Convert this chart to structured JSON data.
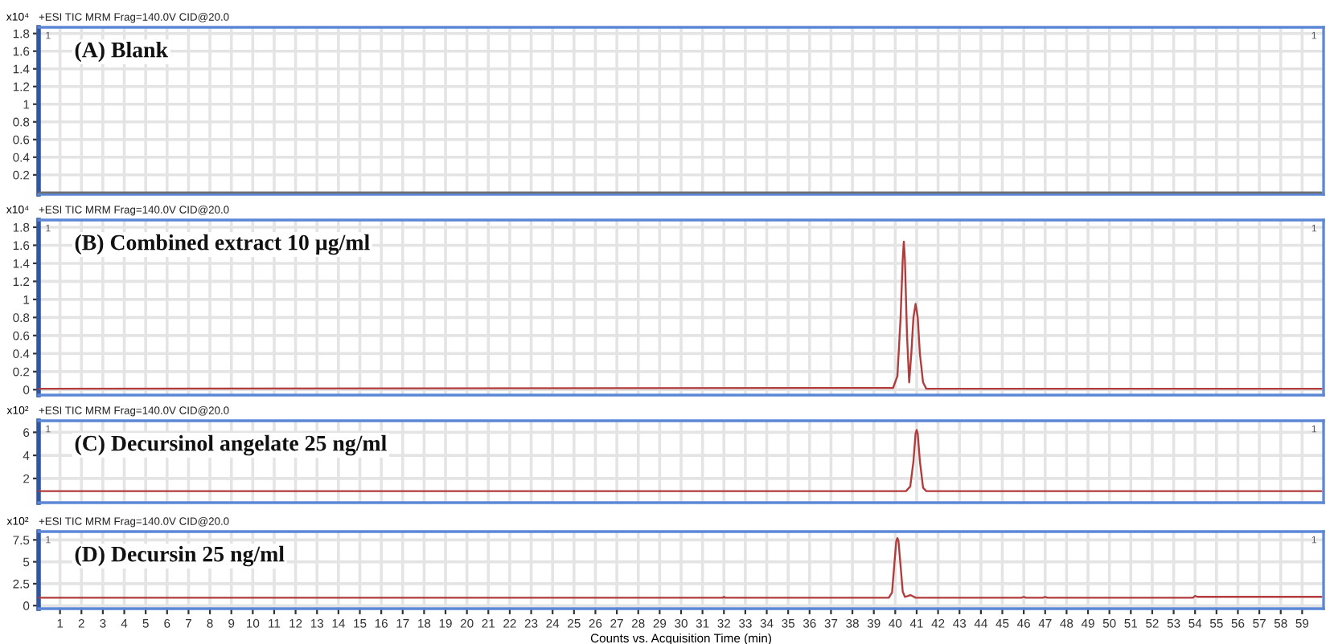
{
  "chart_data": [
    {
      "type": "line",
      "title": "+ESI TIC MRM Frag=140.0V CID@20.0",
      "subtitle": "(A) Blank",
      "ylabel": "x10⁴",
      "annotations": [
        "1",
        "1"
      ],
      "xlim": [
        0,
        60
      ],
      "xticks": [
        1,
        2,
        3,
        4,
        5,
        6,
        7,
        8,
        9,
        10,
        11,
        12,
        13,
        14,
        15,
        16,
        17,
        18,
        19,
        20,
        21,
        22,
        23,
        24,
        25,
        26,
        27,
        28,
        29,
        30,
        31,
        32,
        33,
        34,
        35,
        36,
        37,
        38,
        39,
        40,
        41,
        42,
        43,
        44,
        45,
        46,
        47,
        48,
        49,
        50,
        51,
        52,
        53,
        54,
        55,
        56,
        57,
        58,
        59
      ],
      "ylim": [
        -0.02,
        1.87
      ],
      "yticks": [
        0.2,
        0.4,
        0.6,
        0.8,
        1,
        1.2,
        1.4,
        1.6,
        1.8
      ],
      "grid": true,
      "tick_labels": "y",
      "series": [
        {
          "color": "#6e6e6e",
          "x": [
            0,
            59.9
          ],
          "values": [
            0,
            0
          ]
        }
      ]
    },
    {
      "type": "line",
      "title": "+ESI TIC MRM Frag=140.0V CID@20.0",
      "subtitle": "(B) Combined extract 10 µg/ml",
      "ylabel": "x10⁴",
      "annotations": [
        "1",
        "1"
      ],
      "xlim": [
        0,
        60
      ],
      "xticks": [
        1,
        2,
        3,
        4,
        5,
        6,
        7,
        8,
        9,
        10,
        11,
        12,
        13,
        14,
        15,
        16,
        17,
        18,
        19,
        20,
        21,
        22,
        23,
        24,
        25,
        26,
        27,
        28,
        29,
        30,
        31,
        32,
        33,
        34,
        35,
        36,
        37,
        38,
        39,
        40,
        41,
        42,
        43,
        44,
        45,
        46,
        47,
        48,
        49,
        50,
        51,
        52,
        53,
        54,
        55,
        56,
        57,
        58,
        59
      ],
      "ylim": [
        -0.06,
        1.88
      ],
      "yticks": [
        0,
        0.2,
        0.4,
        0.6,
        0.8,
        1,
        1.2,
        1.4,
        1.6,
        1.8
      ],
      "grid": true,
      "tick_labels": "y",
      "series": [
        {
          "color": "#b23b3b",
          "x": [
            0,
            39.9,
            40.1,
            40.25,
            40.35,
            40.4,
            40.45,
            40.55,
            40.65,
            40.75,
            40.85,
            40.95,
            41.05,
            41.15,
            41.3,
            41.45,
            59.9
          ],
          "values": [
            0.01,
            0.02,
            0.15,
            0.8,
            1.45,
            1.64,
            1.45,
            0.6,
            0.08,
            0.4,
            0.8,
            0.95,
            0.8,
            0.4,
            0.08,
            0.01,
            0.01
          ]
        }
      ]
    },
    {
      "type": "line",
      "title": "+ESI TIC MRM Frag=140.0V CID@20.0",
      "subtitle": "(C) Decursinol angelate 25 ng/ml",
      "ylabel": "x10²",
      "annotations": [
        "1",
        "1"
      ],
      "xlim": [
        0,
        60
      ],
      "xticks": [
        1,
        2,
        3,
        4,
        5,
        6,
        7,
        8,
        9,
        10,
        11,
        12,
        13,
        14,
        15,
        16,
        17,
        18,
        19,
        20,
        21,
        22,
        23,
        24,
        25,
        26,
        27,
        28,
        29,
        30,
        31,
        32,
        33,
        34,
        35,
        36,
        37,
        38,
        39,
        40,
        41,
        42,
        43,
        44,
        45,
        46,
        47,
        48,
        49,
        50,
        51,
        52,
        53,
        54,
        55,
        56,
        57,
        58,
        59
      ],
      "ylim": [
        -0.1,
        7
      ],
      "yticks": [
        2,
        4,
        6
      ],
      "grid": true,
      "tick_labels": "y",
      "series": [
        {
          "color": "#b23b3b",
          "x": [
            0,
            40.5,
            40.7,
            40.85,
            40.95,
            41.0,
            41.05,
            41.15,
            41.3,
            41.45,
            59.9
          ],
          "values": [
            0.9,
            0.9,
            1.3,
            3.5,
            5.9,
            6.2,
            5.9,
            3.5,
            1.2,
            0.9,
            0.9
          ]
        }
      ]
    },
    {
      "type": "line",
      "title": "+ESI TIC MRM Frag=140.0V CID@20.0",
      "subtitle": "(D) Decursin 25 ng/ml",
      "ylabel": "x10²",
      "xlabel": "Counts vs. Acquisition Time (min)",
      "annotations": [
        "1",
        "1"
      ],
      "xlim": [
        0,
        60
      ],
      "xticks": [
        1,
        2,
        3,
        4,
        5,
        6,
        7,
        8,
        9,
        10,
        11,
        12,
        13,
        14,
        15,
        16,
        17,
        18,
        19,
        20,
        21,
        22,
        23,
        24,
        25,
        26,
        27,
        28,
        29,
        30,
        31,
        32,
        33,
        34,
        35,
        36,
        37,
        38,
        39,
        40,
        41,
        42,
        43,
        44,
        45,
        46,
        47,
        48,
        49,
        50,
        51,
        52,
        53,
        54,
        55,
        56,
        57,
        58,
        59
      ],
      "ylim": [
        -0.35,
        8.45
      ],
      "yticks": [
        0,
        2.5,
        5,
        7.5
      ],
      "grid": true,
      "series": [
        {
          "color": "#b23b3b",
          "x": [
            0,
            31.95,
            32.0,
            32.05,
            39.7,
            39.85,
            39.95,
            40.05,
            40.1,
            40.15,
            40.25,
            40.35,
            40.45,
            40.6,
            40.7,
            40.8,
            40.95,
            45.9,
            46.0,
            46.1,
            46.9,
            47.0,
            47.1,
            53.9,
            54.0,
            54.1,
            59.9
          ],
          "values": [
            0.9,
            0.9,
            1.0,
            0.9,
            0.9,
            1.5,
            4.5,
            7.4,
            7.7,
            7.4,
            4.5,
            1.6,
            1.0,
            1.1,
            1.2,
            1.1,
            0.9,
            0.9,
            1.0,
            0.9,
            0.9,
            1.0,
            0.9,
            0.9,
            1.1,
            1.0,
            1.0
          ]
        }
      ]
    }
  ]
}
